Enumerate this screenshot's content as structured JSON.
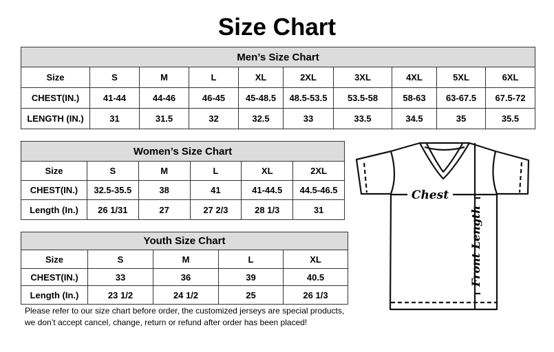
{
  "title": "Size Chart",
  "mens": {
    "heading": "Men’s Size Chart",
    "rows": [
      [
        "Size",
        "S",
        "M",
        "L",
        "XL",
        "2XL",
        "3XL",
        "4XL",
        "5XL",
        "6XL"
      ],
      [
        "CHEST(IN.)",
        "41-44",
        "44-46",
        "46-45",
        "45-48.5",
        "48.5-53.5",
        "53.5-58",
        "58-63",
        "63-67.5",
        "67.5-72"
      ],
      [
        "LENGTH (IN.)",
        "31",
        "31.5",
        "32",
        "32.5",
        "33",
        "33.5",
        "34.5",
        "35",
        "35.5"
      ]
    ]
  },
  "womens": {
    "heading": "Women’s Size Chart",
    "rows": [
      [
        "Size",
        "S",
        "M",
        "L",
        "XL",
        "2XL"
      ],
      [
        "CHEST(IN.)",
        "32.5-35.5",
        "38",
        "41",
        "41-44.5",
        "44.5-46.5"
      ],
      [
        "Length (In.)",
        "26 1/31",
        "27",
        "27 2/3",
        "28 1/3",
        "31"
      ]
    ]
  },
  "youth": {
    "heading": "Youth Size Chart",
    "rows": [
      [
        "Size",
        "S",
        "M",
        "L",
        "XL"
      ],
      [
        "CHEST(IN.)",
        "33",
        "36",
        "39",
        "40.5"
      ],
      [
        "Length (In.)",
        "23 1/2",
        "24 1/2",
        "25",
        "26 1/3"
      ]
    ]
  },
  "note": [
    "Please refer to our size chart before order, the customized jerseys are special products,",
    "we don’t accept cancel, change, return or refund after order has been placed!"
  ],
  "diagram": {
    "chest_label": "Chest",
    "length_label": "Front Length",
    "icon": "t-shirt-icon"
  }
}
